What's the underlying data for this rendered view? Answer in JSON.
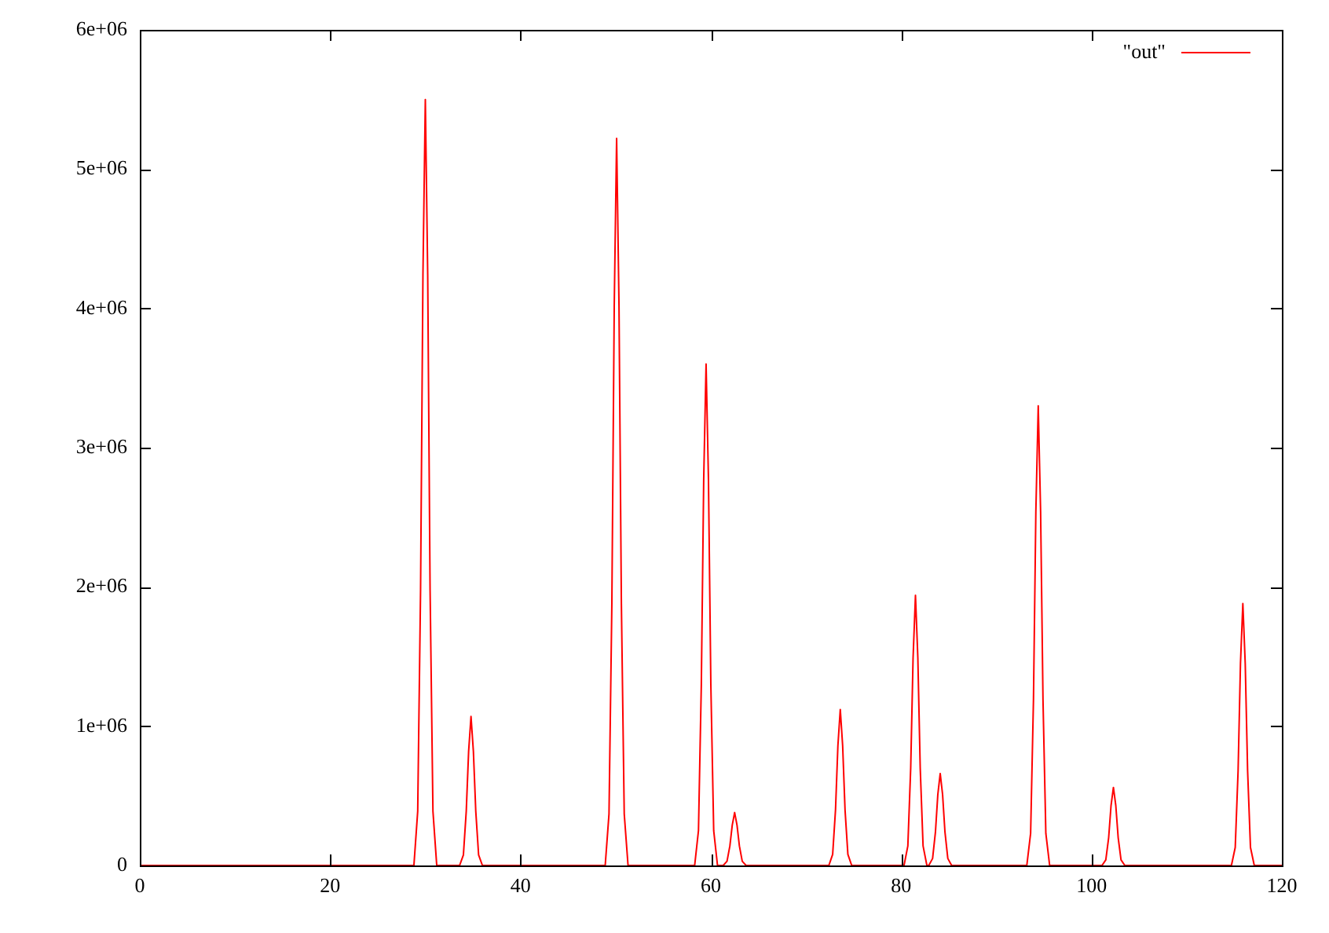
{
  "chart_data": {
    "type": "line",
    "legend": "top right",
    "grid": false,
    "marker": "none",
    "line_style": "solid",
    "xlim": [
      0,
      120
    ],
    "xticks": [
      0,
      20,
      40,
      60,
      80,
      100,
      120
    ],
    "ylim": [
      0,
      6000000
    ],
    "yticks": [
      0,
      {
        "value": 1000000,
        "label": "1e+06"
      },
      {
        "value": 2000000,
        "label": "2e+06"
      },
      {
        "value": 3000000,
        "label": "3e+06"
      },
      {
        "value": 4000000,
        "label": "4e+06"
      },
      {
        "value": 5000000,
        "label": "5e+06"
      },
      {
        "value": 6000000,
        "label": "6e+06"
      }
    ],
    "series": [
      {
        "name": "\"out\"",
        "color": "#ff0000",
        "x": [
          0,
          28.8,
          29.2,
          29.5,
          29.75,
          30,
          30.25,
          30.5,
          30.8,
          31.2,
          33.6,
          34.0,
          34.3,
          34.55,
          34.8,
          35.05,
          35.3,
          35.6,
          36.0,
          48.9,
          49.3,
          49.6,
          49.85,
          50.1,
          50.35,
          50.6,
          50.9,
          51.3,
          58.3,
          58.7,
          59.0,
          59.25,
          59.5,
          59.75,
          60.0,
          60.3,
          60.7,
          61.3,
          61.7,
          62.0,
          62.25,
          62.5,
          62.75,
          63.0,
          63.3,
          63.7,
          72.4,
          72.8,
          73.1,
          73.35,
          73.6,
          73.85,
          74.1,
          74.4,
          74.8,
          80.3,
          80.7,
          81.0,
          81.25,
          81.5,
          81.75,
          82.0,
          82.3,
          82.7,
          82.9,
          83.3,
          83.6,
          83.85,
          84.1,
          84.35,
          84.6,
          84.9,
          85.3,
          93.2,
          93.6,
          93.9,
          94.15,
          94.4,
          94.65,
          94.9,
          95.2,
          95.6,
          101.1,
          101.5,
          101.8,
          102.05,
          102.3,
          102.55,
          102.8,
          103.1,
          103.5,
          114.7,
          115.1,
          115.4,
          115.65,
          115.9,
          116.15,
          116.4,
          116.7,
          117.1,
          120
        ],
        "values": [
          0,
          0,
          390000,
          1980000,
          4240000,
          5500000,
          4240000,
          1980000,
          390000,
          0,
          0,
          75000,
          390000,
          820000,
          1070000,
          820000,
          390000,
          75000,
          0,
          0,
          370000,
          1880000,
          4020000,
          5220000,
          4020000,
          1880000,
          370000,
          0,
          0,
          250000,
          1300000,
          2770000,
          3600000,
          2770000,
          1300000,
          250000,
          0,
          0,
          30000,
          140000,
          290000,
          380000,
          290000,
          140000,
          30000,
          0,
          0,
          80000,
          400000,
          860000,
          1120000,
          860000,
          400000,
          80000,
          0,
          0,
          140000,
          700000,
          1490000,
          1940000,
          1490000,
          700000,
          140000,
          0,
          0,
          50000,
          240000,
          510000,
          660000,
          510000,
          240000,
          50000,
          0,
          0,
          230000,
          1190000,
          2540000,
          3300000,
          2540000,
          1190000,
          230000,
          0,
          0,
          40000,
          200000,
          430000,
          560000,
          430000,
          200000,
          40000,
          0,
          0,
          130000,
          680000,
          1450000,
          1880000,
          1450000,
          680000,
          130000,
          0,
          0
        ]
      }
    ]
  }
}
